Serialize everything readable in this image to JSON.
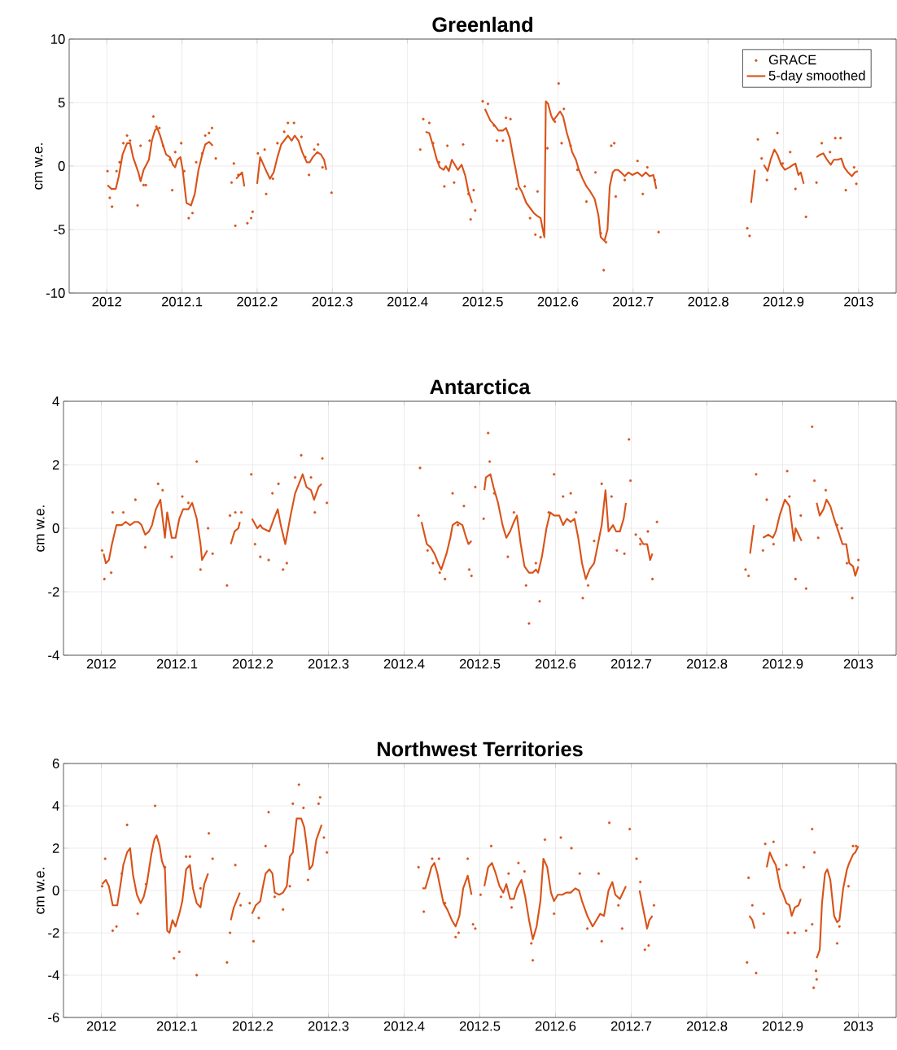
{
  "chart_data": [
    {
      "type": "line",
      "title": "Greenland",
      "ylabel": "cm w.e.",
      "xlim": [
        2011.95,
        2013.05
      ],
      "ylim": [
        -10,
        10
      ],
      "xticks": [
        2012,
        2012.1,
        2012.2,
        2012.3,
        2012.4,
        2012.5,
        2012.6,
        2012.7,
        2012.8,
        2012.9,
        2013
      ],
      "yticks": [
        -10,
        -5,
        0,
        5,
        10
      ],
      "grid": true,
      "legend": "top right",
      "series": [
        {
          "name": "GRACE",
          "type": "scatter",
          "marker": "circle",
          "color": "#d95319",
          "x": [
            2012.001,
            2012.004,
            2012.007,
            2012.013,
            2012.017,
            2012.022,
            2012.027,
            2012.031,
            2012.041,
            2012.045,
            2012.049,
            2012.052,
            2012.057,
            2012.062,
            2012.066,
            2012.07,
            2012.075,
            2012.084,
            2012.087,
            2012.091,
            2012.099,
            2012.103,
            2012.109,
            2012.114,
            2012.119,
            2012.127,
            2012.131,
            2012.136,
            2012.14,
            2012.145,
            2012.166,
            2012.169,
            2012.171,
            2012.175,
            2012.187,
            2012.192,
            2012.194,
            2012.201,
            2012.21,
            2012.212,
            2012.221,
            2012.227,
            2012.236,
            2012.241,
            2012.249,
            2012.259,
            2012.264,
            2012.269,
            2012.276,
            2012.281,
            2012.287,
            2012.299,
            2012.417,
            2012.421,
            2012.429,
            2012.434,
            2012.442,
            2012.449,
            2012.453,
            2012.462,
            2012.474,
            2012.481,
            2012.484,
            2012.488,
            2012.49,
            2012.5,
            2012.507,
            2012.515,
            2012.519,
            2012.527,
            2012.531,
            2012.537,
            2012.545,
            2012.556,
            2012.563,
            2012.57,
            2012.573,
            2012.577,
            2012.586,
            2012.596,
            2012.601,
            2012.605,
            2012.608,
            2012.617,
            2012.626,
            2012.638,
            2012.65,
            2012.657,
            2012.661,
            2012.664,
            2012.671,
            2012.675,
            2012.677,
            2012.689,
            2012.706,
            2012.713,
            2012.719,
            2012.729,
            2012.734,
            2012.852,
            2012.855,
            2012.866,
            2012.871,
            2012.878,
            2012.892,
            2012.899,
            2012.909,
            2012.916,
            2012.93,
            2012.944,
            2012.951,
            2012.962,
            2012.969,
            2012.976,
            2012.983,
            2012.994,
            2012.997
          ],
          "values": [
            -0.4,
            -2.5,
            -3.2,
            -0.4,
            0.3,
            1.8,
            2.4,
            2.0,
            -3.1,
            1.6,
            -1.5,
            -1.5,
            2.0,
            3.9,
            3.1,
            3.0,
            1.6,
            0.5,
            -1.9,
            1.1,
            1.8,
            -0.4,
            -4.1,
            -3.7,
            0.3,
            1.0,
            2.4,
            2.6,
            3.0,
            0.6,
            -1.3,
            0.2,
            -4.7,
            -0.7,
            -4.5,
            -4.1,
            -3.6,
            1.0,
            1.3,
            -2.2,
            -1.0,
            1.8,
            2.7,
            3.4,
            3.4,
            2.3,
            0.7,
            -0.7,
            1.3,
            1.7,
            -0.1,
            -2.1,
            1.3,
            3.7,
            3.4,
            1.8,
            0.3,
            -1.6,
            1.6,
            -1.3,
            1.7,
            -2.2,
            -4.2,
            -1.9,
            -3.5,
            5.1,
            4.9,
            3.2,
            2.0,
            2.0,
            3.8,
            3.7,
            -1.8,
            -1.6,
            -4.1,
            -5.4,
            -2.0,
            -5.6,
            1.4,
            3.5,
            6.5,
            1.8,
            4.5,
            1.6,
            -0.3,
            -2.8,
            -0.5,
            -5.3,
            -8.2,
            -6.0,
            1.6,
            1.8,
            -2.4,
            -1.1,
            0.4,
            -2.2,
            -0.1,
            -1.1,
            -5.2,
            -4.9,
            -5.5,
            2.1,
            0.6,
            -1.1,
            2.6,
            0.2,
            1.1,
            -1.8,
            -4.0,
            -1.3,
            1.8,
            1.1,
            2.2,
            2.2,
            -1.9,
            -0.1,
            -1.4
          ]
        },
        {
          "name": "5-day smoothed",
          "type": "line",
          "color": "#d95319",
          "x": [
            2012.001,
            2012.006,
            2012.012,
            2012.016,
            2012.021,
            2012.027,
            2012.031,
            2012.035,
            2012.042,
            2012.045,
            2012.049,
            2012.056,
            2012.06,
            2012.064,
            2012.067,
            2012.071,
            2012.075,
            2012.079,
            2012.084,
            2012.088,
            2012.091,
            2012.094,
            2012.098,
            2012.101,
            2012.106,
            2012.112,
            2012.117,
            2012.122,
            2012.127,
            2012.131,
            2012.136,
            2012.141,
            2012.156,
            2012.172,
            2012.18,
            2012.183,
            2012.19,
            2012.2,
            2012.204,
            2012.213,
            2012.217,
            2012.222,
            2012.227,
            2012.232,
            2012.241,
            2012.246,
            2012.25,
            2012.255,
            2012.26,
            2012.266,
            2012.27,
            2012.274,
            2012.28,
            2012.285,
            2012.289,
            2012.292,
            2012.35,
            2012.424,
            2012.429,
            2012.434,
            2012.439,
            2012.443,
            2012.448,
            2012.451,
            2012.455,
            2012.459,
            2012.463,
            2012.467,
            2012.472,
            2012.477,
            2012.481,
            2012.486,
            2012.495,
            2012.503,
            2012.51,
            2012.516,
            2012.521,
            2012.527,
            2012.531,
            2012.536,
            2012.54,
            2012.544,
            2012.548,
            2012.552,
            2012.558,
            2012.563,
            2012.568,
            2012.572,
            2012.577,
            2012.582,
            2012.584,
            2012.587,
            2012.591,
            2012.594,
            2012.598,
            2012.603,
            2012.607,
            2012.612,
            2012.615,
            2012.619,
            2012.624,
            2012.628,
            2012.633,
            2012.638,
            2012.643,
            2012.649,
            2012.654,
            2012.657,
            2012.662,
            2012.666,
            2012.669,
            2012.673,
            2012.676,
            2012.68,
            2012.684,
            2012.689,
            2012.694,
            2012.699,
            2012.706,
            2012.712,
            2012.717,
            2012.722,
            2012.727,
            2012.731,
            2012.8,
            2012.857,
            2012.862,
            2012.868,
            2012.874,
            2012.879,
            2012.883,
            2012.888,
            2012.892,
            2012.897,
            2012.902,
            2012.908,
            2012.913,
            2012.916,
            2012.92,
            2012.923,
            2012.927,
            2012.935,
            2012.944,
            2012.949,
            2012.953,
            2012.958,
            2012.963,
            2012.967,
            2012.972,
            2012.977,
            2012.981,
            2012.986,
            2012.991,
            2012.995,
            2012.999
          ],
          "values": [
            -1.5,
            -1.8,
            -1.8,
            -0.8,
            0.9,
            1.8,
            1.8,
            0.7,
            -0.5,
            -1.2,
            -0.3,
            0.5,
            2.0,
            2.8,
            3.0,
            2.4,
            1.6,
            0.9,
            0.7,
            0.1,
            -0.1,
            0.5,
            0.7,
            -0.3,
            -2.9,
            -3.1,
            -2.2,
            -0.3,
            0.9,
            1.7,
            1.9,
            1.6,
            null,
            -1.0,
            -0.5,
            -1.6,
            null,
            -1.4,
            0.7,
            -0.5,
            -1.0,
            -0.5,
            0.7,
            1.7,
            2.4,
            2.0,
            2.4,
            2.0,
            1.1,
            0.3,
            0.3,
            0.7,
            1.1,
            0.9,
            0.5,
            -0.3,
            null,
            2.7,
            2.6,
            1.6,
            0.5,
            -0.1,
            -0.3,
            0.0,
            -0.4,
            0.5,
            0.1,
            -0.3,
            0.1,
            -0.8,
            -2.0,
            -2.9,
            null,
            4.5,
            3.6,
            3.2,
            2.8,
            2.8,
            3.0,
            2.2,
            0.9,
            -0.3,
            -1.6,
            -2.0,
            -2.9,
            -3.3,
            -3.7,
            -3.9,
            -4.1,
            -5.6,
            5.1,
            4.9,
            4.0,
            3.6,
            3.9,
            4.3,
            3.9,
            2.6,
            2.0,
            1.1,
            0.5,
            -0.3,
            -1.0,
            -1.6,
            -2.0,
            -2.6,
            -3.9,
            -5.6,
            -5.9,
            -5.0,
            -1.6,
            -0.5,
            -0.3,
            -0.3,
            -0.5,
            -0.8,
            -0.5,
            -0.7,
            -0.5,
            -0.8,
            -0.5,
            -0.8,
            -0.7,
            -1.8,
            null,
            -2.9,
            -0.3,
            null,
            0.1,
            -0.4,
            0.5,
            1.3,
            0.9,
            0.1,
            -0.3,
            -0.1,
            0.1,
            0.2,
            -0.7,
            -0.5,
            -1.4,
            null,
            0.7,
            0.9,
            1.0,
            0.5,
            0.1,
            0.5,
            0.5,
            0.6,
            -0.1,
            -0.5,
            -0.8,
            -0.5,
            -0.4
          ]
        }
      ]
    },
    {
      "type": "line",
      "title": "Antarctica",
      "ylabel": "cm w.e.",
      "xlim": [
        2011.95,
        2013.05
      ],
      "ylim": [
        -4,
        4
      ],
      "xticks": [
        2012,
        2012.1,
        2012.2,
        2012.3,
        2012.4,
        2012.5,
        2012.6,
        2012.7,
        2012.8,
        2012.9,
        2013
      ],
      "yticks": [
        -4,
        -2,
        0,
        2,
        4
      ],
      "grid": true,
      "series": [
        {
          "type": "scatter",
          "marker": "circle",
          "color": "#d95319",
          "x": [
            2012.001,
            2012.004,
            2012.013,
            2012.015,
            2012.029,
            2012.045,
            2012.058,
            2012.075,
            2012.081,
            2012.093,
            2012.107,
            2012.115,
            2012.126,
            2012.131,
            2012.141,
            2012.147,
            2012.166,
            2012.17,
            2012.177,
            2012.185,
            2012.198,
            2012.203,
            2012.21,
            2012.221,
            2012.226,
            2012.234,
            2012.24,
            2012.245,
            2012.256,
            2012.264,
            2012.277,
            2012.282,
            2012.292,
            2012.298,
            2012.421,
            2012.419,
            2012.431,
            2012.438,
            2012.447,
            2012.454,
            2012.464,
            2012.471,
            2012.479,
            2012.486,
            2012.489,
            2012.494,
            2012.505,
            2012.511,
            2012.513,
            2012.519,
            2012.537,
            2012.545,
            2012.561,
            2012.565,
            2012.574,
            2012.579,
            2012.591,
            2012.598,
            2012.61,
            2012.62,
            2012.627,
            2012.636,
            2012.643,
            2012.651,
            2012.661,
            2012.674,
            2012.681,
            2012.691,
            2012.697,
            2012.699,
            2012.706,
            2012.712,
            2012.722,
            2012.728,
            2012.734,
            2012.851,
            2012.855,
            2012.865,
            2012.874,
            2012.879,
            2012.888,
            2012.906,
            2012.909,
            2012.917,
            2012.924,
            2012.931,
            2012.939,
            2012.942,
            2012.947,
            2012.957,
            2012.972,
            2012.978,
            2012.985,
            2012.992,
            2013.0
          ],
          "values": [
            -0.7,
            -1.6,
            -1.4,
            0.5,
            0.5,
            0.9,
            -0.6,
            1.4,
            1.2,
            -0.9,
            1.0,
            0.8,
            2.1,
            -1.3,
            0.0,
            -0.8,
            -1.8,
            0.4,
            0.5,
            0.5,
            1.7,
            -0.5,
            -0.9,
            -1.0,
            1.1,
            1.4,
            -1.3,
            -1.1,
            1.6,
            2.3,
            1.6,
            0.5,
            2.2,
            0.8,
            1.9,
            0.4,
            -0.7,
            -1.1,
            -1.4,
            -1.6,
            1.1,
            0.1,
            0.7,
            -1.3,
            -1.5,
            1.3,
            0.3,
            3.0,
            2.1,
            1.1,
            -0.9,
            0.5,
            -1.8,
            -3.0,
            -1.1,
            -2.3,
            0.5,
            1.7,
            1.0,
            1.1,
            0.5,
            -2.2,
            -1.8,
            -0.4,
            1.4,
            1.0,
            -0.7,
            -0.8,
            2.8,
            1.5,
            -0.2,
            -0.5,
            -0.1,
            -1.6,
            0.2,
            -1.3,
            -1.5,
            1.7,
            -0.7,
            0.9,
            -0.5,
            1.8,
            1.0,
            -1.6,
            0.4,
            -1.9,
            3.2,
            1.5,
            -0.3,
            1.2,
            0.1,
            0.0,
            -1.1,
            -2.2,
            -1.0
          ]
        },
        {
          "type": "line",
          "color": "#d95319",
          "x": [
            2012.003,
            2012.006,
            2012.01,
            2012.014,
            2012.02,
            2012.027,
            2012.032,
            2012.038,
            2012.044,
            2012.049,
            2012.053,
            2012.058,
            2012.063,
            2012.067,
            2012.072,
            2012.078,
            2012.084,
            2012.087,
            2012.093,
            2012.098,
            2012.103,
            2012.108,
            2012.115,
            2012.12,
            2012.126,
            2012.131,
            2012.133,
            2012.14,
            2012.155,
            2012.171,
            2012.176,
            2012.181,
            2012.183,
            2012.19,
            2012.199,
            2012.206,
            2012.21,
            2012.213,
            2012.222,
            2012.228,
            2012.233,
            2012.237,
            2012.243,
            2012.25,
            2012.256,
            2012.261,
            2012.266,
            2012.271,
            2012.277,
            2012.281,
            2012.287,
            2012.291,
            2012.35,
            2012.423,
            2012.43,
            2012.435,
            2012.44,
            2012.445,
            2012.449,
            2012.456,
            2012.461,
            2012.464,
            2012.47,
            2012.477,
            2012.482,
            2012.485,
            2012.489,
            2012.498,
            2012.506,
            2012.508,
            2012.514,
            2012.518,
            2012.524,
            2012.53,
            2012.535,
            2012.54,
            2012.545,
            2012.549,
            2012.554,
            2012.559,
            2012.565,
            2012.57,
            2012.574,
            2012.577,
            2012.582,
            2012.588,
            2012.593,
            2012.598,
            2012.605,
            2012.61,
            2012.615,
            2012.62,
            2012.625,
            2012.63,
            2012.635,
            2012.64,
            2012.645,
            2012.651,
            2012.656,
            2012.661,
            2012.666,
            2012.67,
            2012.676,
            2012.68,
            2012.685,
            2012.69,
            2012.693,
            2012.702,
            2012.711,
            2012.716,
            2012.721,
            2012.725,
            2012.728,
            2012.8,
            2012.857,
            2012.862,
            2012.868,
            2012.874,
            2012.881,
            2012.887,
            2012.891,
            2012.896,
            2012.903,
            2012.909,
            2012.915,
            2012.917,
            2012.921,
            2012.925,
            2012.935,
            2012.945,
            2012.949,
            2012.954,
            2012.958,
            2012.963,
            2012.968,
            2012.975,
            2012.979,
            2012.984,
            2012.988,
            2012.993,
            2012.996,
            2013.0
          ],
          "values": [
            -0.8,
            -1.1,
            -1.0,
            -0.5,
            0.1,
            0.1,
            0.2,
            0.1,
            0.2,
            0.2,
            0.1,
            -0.2,
            -0.1,
            0.1,
            0.6,
            0.9,
            -0.3,
            0.5,
            -0.3,
            -0.3,
            0.3,
            0.6,
            0.6,
            0.8,
            0.3,
            -0.5,
            -1.0,
            -0.7,
            null,
            -0.5,
            -0.1,
            0.0,
            0.2,
            null,
            0.3,
            0.0,
            0.1,
            0.0,
            -0.1,
            0.3,
            0.6,
            0.1,
            -0.5,
            0.4,
            1.1,
            1.4,
            1.7,
            1.3,
            1.2,
            0.9,
            1.3,
            1.4,
            null,
            0.2,
            -0.5,
            -0.6,
            -0.8,
            -1.1,
            -1.3,
            -0.8,
            -0.3,
            0.1,
            0.2,
            0.1,
            -0.3,
            -0.5,
            -0.4,
            null,
            1.2,
            1.6,
            1.7,
            1.3,
            0.8,
            0.1,
            -0.3,
            -0.1,
            0.2,
            0.4,
            -0.5,
            -1.2,
            -1.4,
            -1.4,
            -1.3,
            -1.4,
            -0.9,
            0.0,
            0.5,
            0.4,
            0.4,
            0.1,
            0.3,
            0.2,
            0.3,
            -0.3,
            -1.1,
            -1.6,
            -1.3,
            -1.1,
            -0.5,
            0.1,
            1.2,
            -0.1,
            0.1,
            -0.1,
            -0.1,
            0.3,
            0.8,
            null,
            -0.3,
            -0.5,
            -0.5,
            -1.0,
            -0.8,
            null,
            -0.8,
            0.1,
            null,
            -0.3,
            -0.2,
            -0.3,
            -0.1,
            0.4,
            0.9,
            0.7,
            -0.4,
            0.0,
            -0.2,
            -0.4,
            null,
            0.8,
            0.4,
            0.6,
            0.9,
            0.7,
            0.3,
            -0.2,
            -0.5,
            -0.5,
            -1.1,
            -1.2,
            -1.5,
            -1.2
          ]
        }
      ]
    },
    {
      "type": "line",
      "title": "Northwest Territories",
      "ylabel": "cm w.e.",
      "xlim": [
        2011.95,
        2013.05
      ],
      "ylim": [
        -6,
        6
      ],
      "xticks": [
        2012,
        2012.1,
        2012.2,
        2012.3,
        2012.4,
        2012.5,
        2012.6,
        2012.7,
        2012.8,
        2012.9,
        2013
      ],
      "yticks": [
        -6,
        -4,
        -2,
        0,
        2,
        4,
        6
      ],
      "grid": true,
      "series": [
        {
          "type": "scatter",
          "marker": "circle",
          "color": "#d95319",
          "x": [
            2012.001,
            2012.005,
            2012.015,
            2012.02,
            2012.027,
            2012.034,
            2012.048,
            2012.059,
            2012.071,
            2012.084,
            2012.096,
            2012.103,
            2012.112,
            2012.117,
            2012.126,
            2012.131,
            2012.142,
            2012.147,
            2012.166,
            2012.17,
            2012.177,
            2012.184,
            2012.196,
            2012.201,
            2012.208,
            2012.217,
            2012.221,
            2012.229,
            2012.24,
            2012.249,
            2012.253,
            2012.261,
            2012.267,
            2012.273,
            2012.287,
            2012.289,
            2012.294,
            2012.298,
            2012.419,
            2012.426,
            2012.437,
            2012.446,
            2012.454,
            2012.468,
            2012.472,
            2012.484,
            2012.491,
            2012.494,
            2012.501,
            2012.515,
            2012.528,
            2012.538,
            2012.542,
            2012.551,
            2012.559,
            2012.568,
            2012.57,
            2012.586,
            2012.598,
            2012.607,
            2012.621,
            2012.632,
            2012.642,
            2012.657,
            2012.661,
            2012.671,
            2012.683,
            2012.688,
            2012.698,
            2012.707,
            2012.712,
            2012.718,
            2012.723,
            2012.73,
            2012.853,
            2012.855,
            2012.86,
            2012.865,
            2012.875,
            2012.877,
            2012.888,
            2012.895,
            2012.905,
            2012.907,
            2012.916,
            2012.928,
            2012.931,
            2012.939,
            2012.939,
            2012.942,
            2012.944,
            2012.945,
            2012.941,
            2012.972,
            2012.975,
            2012.987,
            2012.993,
            2012.997
          ],
          "values": [
            0.2,
            1.5,
            -1.9,
            -1.7,
            0.8,
            3.1,
            -1.1,
            0.3,
            4.0,
            1.1,
            -3.2,
            -2.9,
            1.6,
            1.6,
            -4.0,
            0.1,
            2.7,
            1.5,
            -3.4,
            -2.0,
            1.2,
            -0.7,
            -0.6,
            -2.4,
            -1.3,
            2.1,
            3.7,
            -0.3,
            -0.9,
            0.2,
            4.1,
            5.0,
            3.9,
            0.5,
            4.1,
            4.4,
            2.5,
            1.8,
            1.1,
            -1.0,
            1.5,
            1.5,
            -0.6,
            -2.2,
            -2.0,
            1.5,
            -1.6,
            -1.8,
            -0.2,
            2.1,
            -0.3,
            0.8,
            -0.8,
            1.3,
            0.9,
            -2.5,
            -3.3,
            2.4,
            -1.1,
            2.5,
            2.0,
            0.8,
            -1.8,
            0.8,
            -2.4,
            3.2,
            -0.7,
            -1.8,
            2.9,
            1.5,
            0.4,
            -2.8,
            -2.6,
            -0.7,
            -3.4,
            0.6,
            -0.7,
            -3.9,
            -1.1,
            2.2,
            2.3,
            1.0,
            1.2,
            -2.0,
            -2.0,
            1.1,
            -1.9,
            -1.6,
            2.9,
            1.8,
            -3.8,
            -4.2,
            -4.6,
            -2.5,
            -1.7,
            0.2,
            2.1,
            2.1
          ]
        },
        {
          "type": "line",
          "color": "#d95319",
          "x": [
            2012.001,
            2012.006,
            2012.01,
            2012.015,
            2012.021,
            2012.025,
            2012.029,
            2012.034,
            2012.038,
            2012.042,
            2012.047,
            2012.052,
            2012.056,
            2012.06,
            2012.066,
            2012.07,
            2012.073,
            2012.077,
            2012.08,
            2012.084,
            2012.087,
            2012.09,
            2012.094,
            2012.098,
            2012.103,
            2012.107,
            2012.112,
            2012.117,
            2012.121,
            2012.126,
            2012.131,
            2012.136,
            2012.141,
            2012.156,
            2012.171,
            2012.175,
            2012.183,
            2012.19,
            2012.199,
            2012.204,
            2012.21,
            2012.213,
            2012.217,
            2012.222,
            2012.226,
            2012.229,
            2012.235,
            2012.24,
            2012.245,
            2012.249,
            2012.253,
            2012.258,
            2012.264,
            2012.268,
            2012.271,
            2012.275,
            2012.279,
            2012.284,
            2012.291,
            2012.35,
            2012.424,
            2012.428,
            2012.433,
            2012.436,
            2012.44,
            2012.444,
            2012.448,
            2012.452,
            2012.457,
            2012.463,
            2012.468,
            2012.473,
            2012.478,
            2012.484,
            2012.489,
            2012.498,
            2012.506,
            2012.511,
            2012.516,
            2012.521,
            2012.526,
            2012.531,
            2012.535,
            2012.54,
            2012.545,
            2012.549,
            2012.555,
            2012.56,
            2012.565,
            2012.57,
            2012.575,
            2012.58,
            2012.584,
            2012.589,
            2012.594,
            2012.598,
            2012.603,
            2012.609,
            2012.614,
            2012.62,
            2012.626,
            2012.631,
            2012.635,
            2012.642,
            2012.649,
            2012.654,
            2012.659,
            2012.664,
            2012.67,
            2012.675,
            2012.679,
            2012.685,
            2012.693,
            2012.702,
            2012.711,
            2012.716,
            2012.721,
            2012.724,
            2012.728,
            2012.8,
            2012.856,
            2012.86,
            2012.863,
            2012.871,
            2012.879,
            2012.883,
            2012.888,
            2012.891,
            2012.897,
            2012.9,
            2012.905,
            2012.909,
            2012.912,
            2012.916,
            2012.921,
            2012.924,
            2012.935,
            2012.945,
            2012.949,
            2012.952,
            2012.956,
            2012.959,
            2012.963,
            2012.968,
            2012.972,
            2012.975,
            2012.98,
            2012.985,
            2012.988,
            2012.993,
            2012.996,
            2013.0
          ],
          "values": [
            0.3,
            0.5,
            0.2,
            -0.7,
            -0.7,
            0.2,
            1.2,
            1.8,
            2.0,
            0.7,
            -0.2,
            -0.6,
            -0.3,
            0.3,
            1.7,
            2.4,
            2.6,
            2.1,
            1.4,
            1.0,
            -1.9,
            -2.0,
            -1.4,
            -1.7,
            -1.1,
            -0.5,
            1.0,
            1.2,
            0.1,
            -0.6,
            -0.8,
            0.3,
            0.8,
            null,
            -1.4,
            -0.8,
            -0.1,
            null,
            -1.1,
            -0.7,
            -0.5,
            0.1,
            0.8,
            1.0,
            0.8,
            -0.1,
            -0.2,
            -0.1,
            0.2,
            1.6,
            1.8,
            3.4,
            3.4,
            3.0,
            2.2,
            1.0,
            1.2,
            2.4,
            3.1,
            null,
            0.1,
            0.1,
            0.7,
            1.1,
            1.3,
            0.8,
            0.1,
            -0.6,
            -0.9,
            -1.4,
            -1.7,
            -1.2,
            0.1,
            0.7,
            -0.2,
            null,
            0.2,
            1.1,
            1.3,
            0.8,
            0.2,
            -0.1,
            0.3,
            -0.4,
            -0.4,
            0.1,
            0.5,
            -0.3,
            -1.4,
            -2.3,
            -1.7,
            -0.5,
            1.5,
            1.1,
            -0.1,
            -0.5,
            -0.2,
            -0.2,
            -0.1,
            -0.1,
            0.1,
            0.0,
            -0.5,
            -1.2,
            -1.7,
            -1.4,
            -1.1,
            -1.2,
            0.0,
            0.4,
            -0.2,
            -0.4,
            0.2,
            null,
            0.0,
            -0.9,
            -1.8,
            -1.4,
            -1.2,
            null,
            -1.2,
            -1.4,
            -1.8,
            null,
            1.1,
            1.8,
            1.4,
            1.2,
            0.1,
            -0.1,
            -0.6,
            -0.7,
            -1.2,
            -0.8,
            -0.7,
            -0.4,
            null,
            -3.2,
            -2.8,
            -0.6,
            0.8,
            1.0,
            0.5,
            -1.2,
            -1.5,
            -1.4,
            0.1,
            1.0,
            1.3,
            1.7,
            1.8,
            2.1
          ]
        }
      ]
    }
  ]
}
